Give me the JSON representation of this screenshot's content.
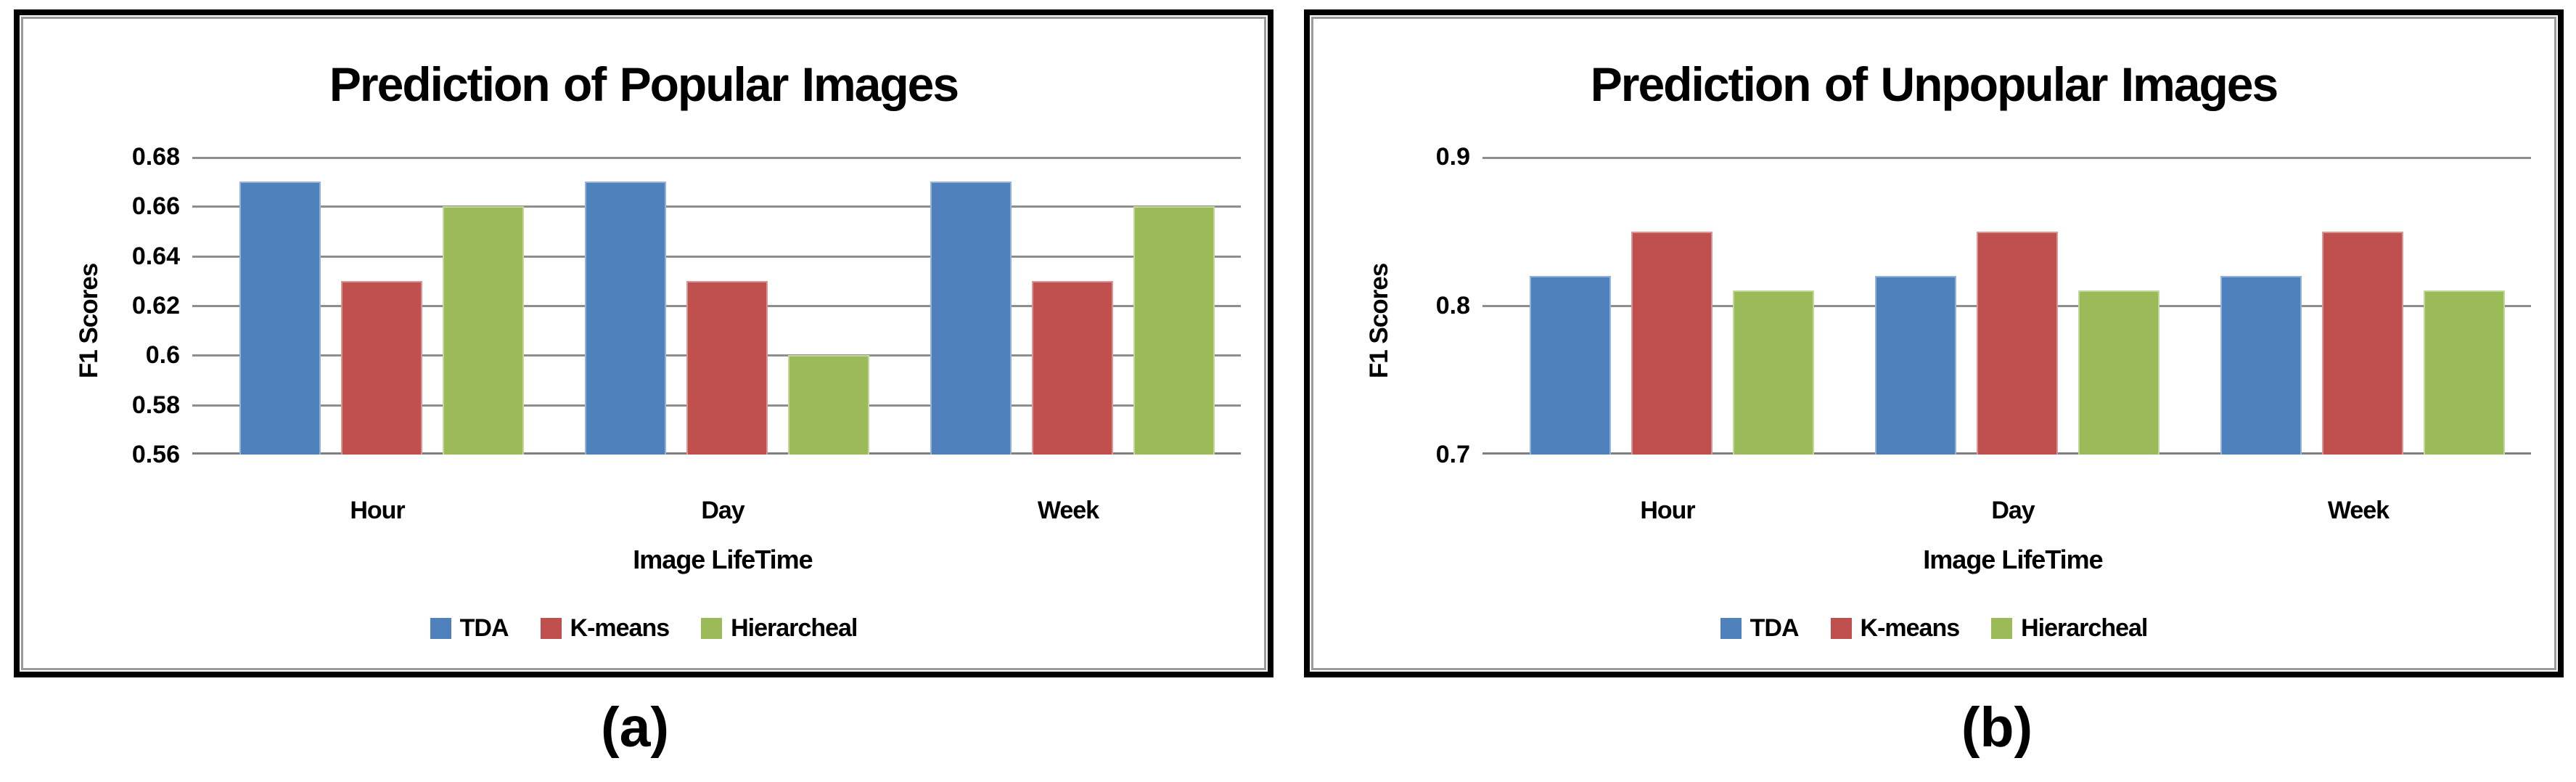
{
  "figure": {
    "captions": {
      "a": "(a)",
      "b": "(b)"
    }
  },
  "style": {
    "grid_color": "#8e8e8e",
    "baseline_color": "#7f7f7f",
    "panel_border_color": "#000000",
    "inner_border_color": "#9a9a9a",
    "text_color": "#000000"
  },
  "chart_data": [
    {
      "type": "bar",
      "title": "Prediction of Popular Images",
      "xlabel": "Image LifeTime",
      "ylabel": "F1 Scores",
      "categories": [
        "Hour",
        "Day",
        "Week"
      ],
      "series": [
        {
          "name": "TDA",
          "color": "#4F81BD",
          "edge_color": "#95B3D7",
          "values": [
            0.67,
            0.67,
            0.67
          ]
        },
        {
          "name": "K-means",
          "color": "#C0504D",
          "edge_color": "#D99694",
          "values": [
            0.63,
            0.63,
            0.63
          ]
        },
        {
          "name": "Hierarcheal",
          "color": "#9BBB59",
          "edge_color": "#C3D69B",
          "values": [
            0.66,
            0.6,
            0.66
          ]
        }
      ],
      "ylim": [
        0.56,
        0.68
      ],
      "ytick_labels": [
        "0.68",
        "0.66",
        "0.64",
        "0.62",
        "0.6",
        "0.58",
        "0.56"
      ],
      "grid": true,
      "legend_position": "bottom"
    },
    {
      "type": "bar",
      "title": "Prediction of Unpopular Images",
      "xlabel": "Image LifeTime",
      "ylabel": "F1 Scores",
      "categories": [
        "Hour",
        "Day",
        "Week"
      ],
      "series": [
        {
          "name": "TDA",
          "color": "#4F81BD",
          "edge_color": "#95B3D7",
          "values": [
            0.82,
            0.82,
            0.82
          ]
        },
        {
          "name": "K-means",
          "color": "#C0504D",
          "edge_color": "#D99694",
          "values": [
            0.85,
            0.85,
            0.85
          ]
        },
        {
          "name": "Hierarcheal",
          "color": "#9BBB59",
          "edge_color": "#C3D69B",
          "values": [
            0.81,
            0.81,
            0.81
          ]
        }
      ],
      "ylim": [
        0.7,
        0.9
      ],
      "ytick_labels": [
        "0.9",
        "0.8",
        "0.7"
      ],
      "grid": true,
      "legend_position": "bottom"
    }
  ]
}
